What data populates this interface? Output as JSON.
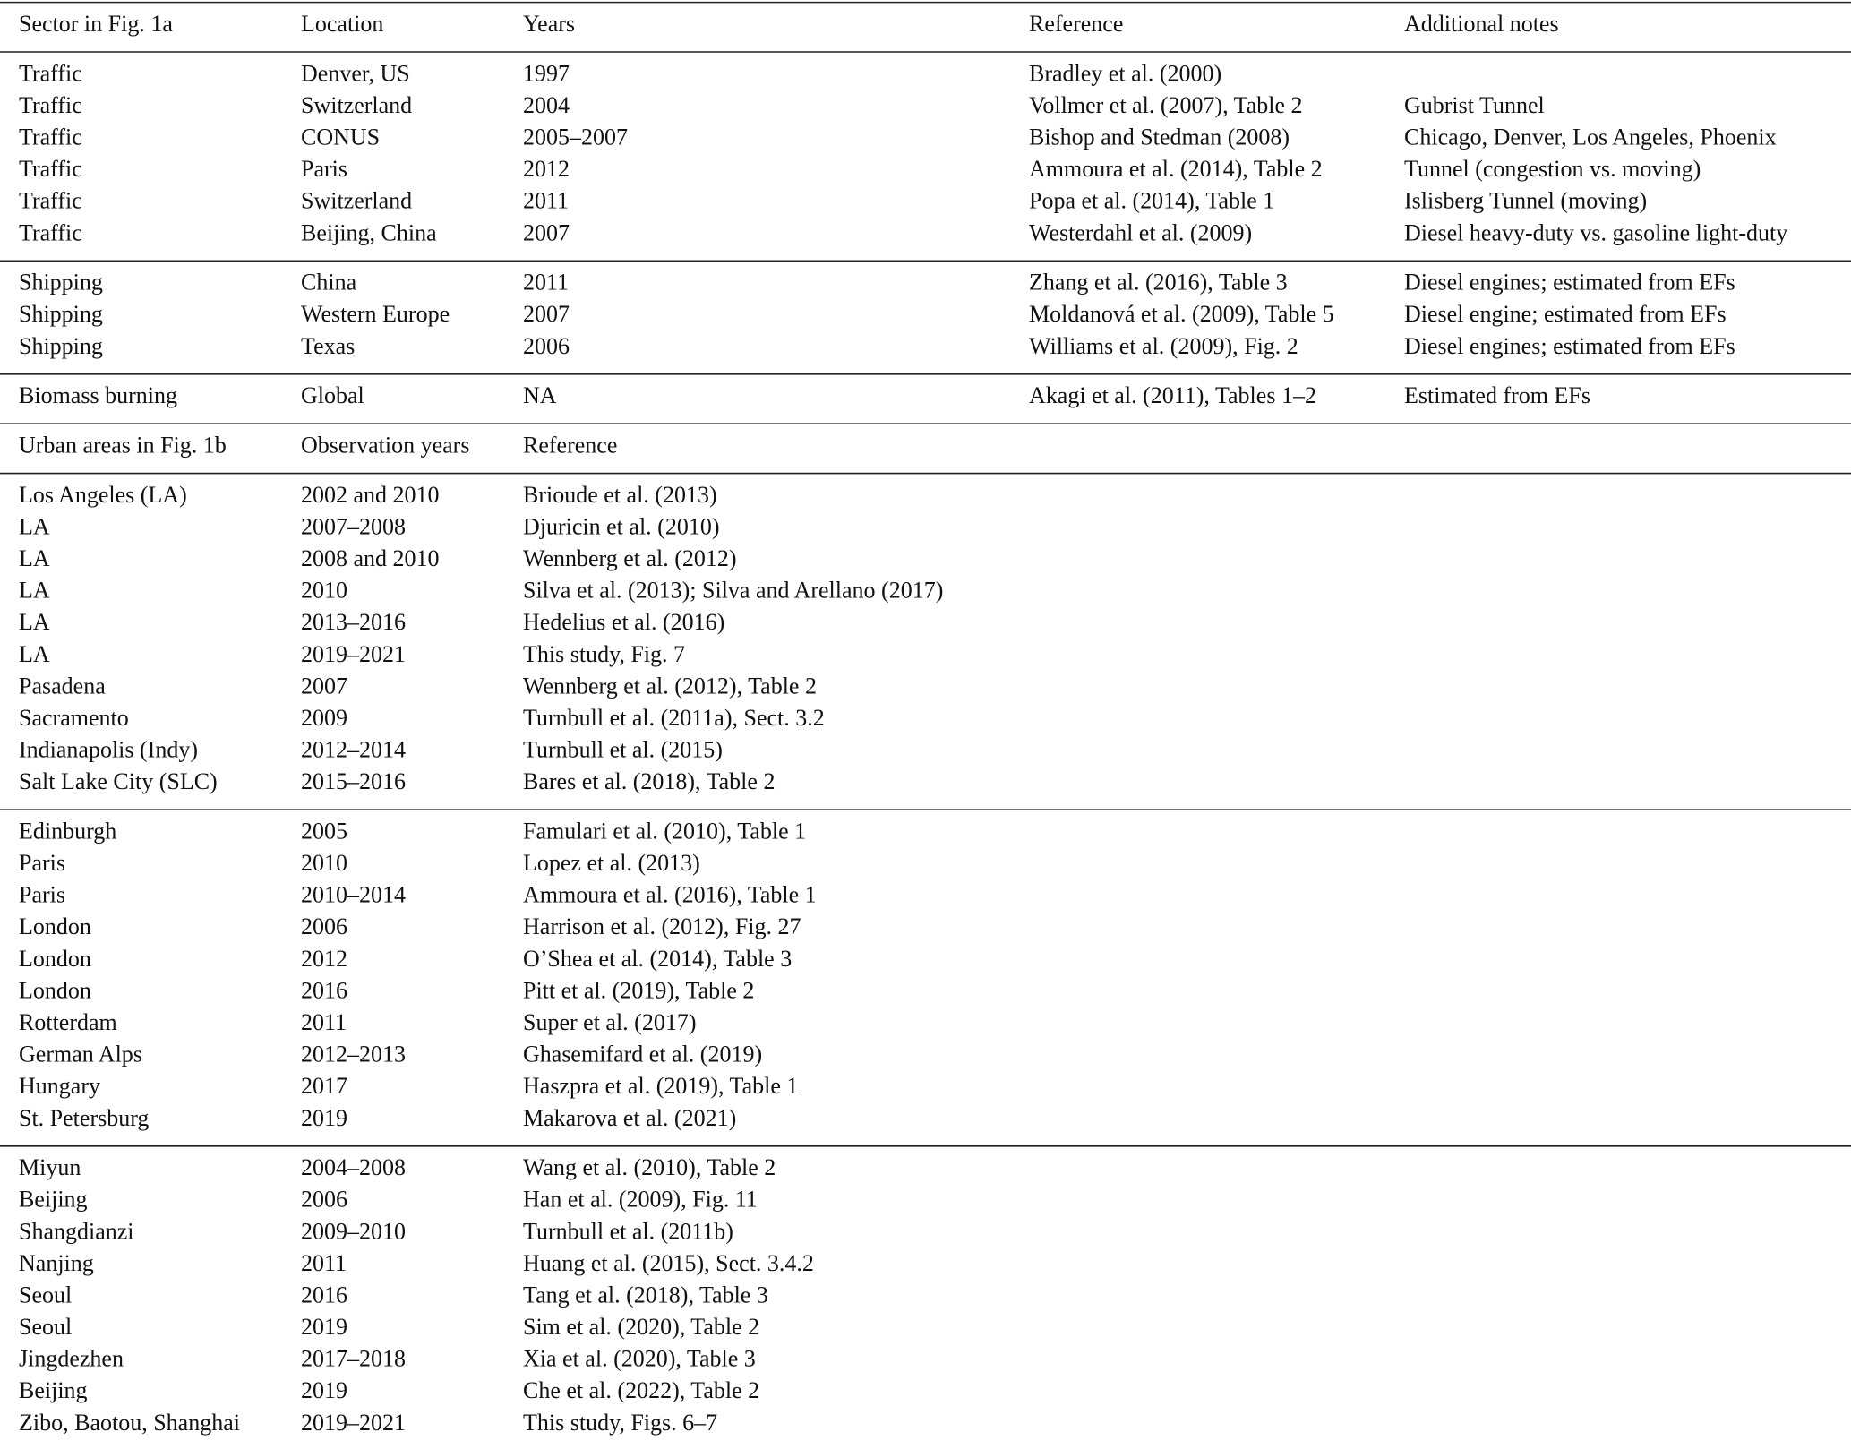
{
  "sections": [
    {
      "header": [
        "Sector in Fig. 1a",
        "Location",
        "Years",
        "Reference",
        "Additional notes"
      ],
      "groups": [
        [
          [
            "Traffic",
            "Denver, US",
            "1997",
            "Bradley et al. (2000)"
          ],
          [
            "Traffic",
            "Switzerland",
            "2004",
            "Vollmer et al. (2007), Table 2",
            "Gubrist Tunnel"
          ],
          [
            "Traffic",
            "CONUS",
            "2005–2007",
            "Bishop and Stedman (2008)",
            "Chicago, Denver, Los Angeles, Phoenix"
          ],
          [
            "Traffic",
            "Paris",
            "2012",
            "Ammoura et al. (2014), Table 2",
            "Tunnel (congestion vs. moving)"
          ],
          [
            "Traffic",
            "Switzerland",
            "2011",
            "Popa et al. (2014), Table 1",
            "Islisberg Tunnel (moving)"
          ],
          [
            "Traffic",
            "Beijing, China",
            "2007",
            "Westerdahl et al. (2009)",
            "Diesel heavy-duty vs. gasoline light-duty"
          ]
        ],
        [
          [
            "Shipping",
            "China",
            "2011",
            "Zhang et al. (2016), Table 3",
            "Diesel engines; estimated from EFs"
          ],
          [
            "Shipping",
            "Western Europe",
            "2007",
            "Moldanová et al. (2009), Table 5",
            "Diesel engine; estimated from EFs"
          ],
          [
            "Shipping",
            "Texas",
            "2006",
            "Williams et al. (2009), Fig. 2",
            "Diesel engines; estimated from EFs"
          ]
        ],
        [
          [
            "Biomass burning",
            "Global",
            "NA",
            "Akagi et al. (2011), Tables 1–2",
            "Estimated from EFs"
          ]
        ]
      ]
    },
    {
      "header": [
        "Urban areas in Fig. 1b",
        "Observation years",
        "Reference"
      ],
      "groups": [
        [
          [
            "Los Angeles (LA)",
            "2002 and 2010",
            "Brioude et al. (2013)"
          ],
          [
            "LA",
            "2007–2008",
            "Djuricin et al. (2010)"
          ],
          [
            "LA",
            "2008 and 2010",
            "Wennberg et al. (2012)"
          ],
          [
            "LA",
            "2010",
            "Silva et al. (2013); Silva and Arellano (2017)"
          ],
          [
            "LA",
            "2013–2016",
            "Hedelius et al. (2016)"
          ],
          [
            "LA",
            "2019–2021",
            "This study, Fig. 7"
          ],
          [
            "Pasadena",
            "2007",
            "Wennberg et al. (2012), Table 2"
          ],
          [
            "Sacramento",
            "2009",
            "Turnbull et al. (2011a), Sect. 3.2"
          ],
          [
            "Indianapolis (Indy)",
            "2012–2014",
            "Turnbull et al. (2015)"
          ],
          [
            "Salt Lake City (SLC)",
            "2015–2016",
            "Bares et al. (2018), Table 2"
          ]
        ],
        [
          [
            "Edinburgh",
            "2005",
            "Famulari et al. (2010), Table 1"
          ],
          [
            "Paris",
            "2010",
            "Lopez et al. (2013)"
          ],
          [
            "Paris",
            "2010–2014",
            "Ammoura et al. (2016), Table 1"
          ],
          [
            "London",
            "2006",
            "Harrison et al. (2012), Fig. 27"
          ],
          [
            "London",
            "2012",
            "O’Shea et al. (2014), Table 3"
          ],
          [
            "London",
            "2016",
            "Pitt et al. (2019), Table 2"
          ],
          [
            "Rotterdam",
            "2011",
            "Super et al. (2017)"
          ],
          [
            "German Alps",
            "2012–2013",
            "Ghasemifard et al. (2019)"
          ],
          [
            "Hungary",
            "2017",
            "Haszpra et al. (2019), Table 1"
          ],
          [
            "St. Petersburg",
            "2019",
            "Makarova et al. (2021)"
          ]
        ],
        [
          [
            "Miyun",
            "2004–2008",
            "Wang et al. (2010), Table 2"
          ],
          [
            "Beijing",
            "2006",
            "Han et al. (2009), Fig. 11"
          ],
          [
            "Shangdianzi",
            "2009–2010",
            "Turnbull et al. (2011b)"
          ],
          [
            "Nanjing",
            "2011",
            "Huang et al. (2015), Sect. 3.4.2"
          ],
          [
            "Seoul",
            "2016",
            "Tang et al. (2018), Table 3"
          ],
          [
            "Seoul",
            "2019",
            "Sim et al. (2020), Table 2"
          ],
          [
            "Jingdezhen",
            "2017–2018",
            "Xia et al. (2020), Table 3"
          ],
          [
            "Beijing",
            "2019",
            "Che et al. (2022), Table 2"
          ],
          [
            "Zibo, Baotou, Shanghai",
            "2019–2021",
            "This study, Figs. 6–7"
          ]
        ]
      ]
    }
  ]
}
